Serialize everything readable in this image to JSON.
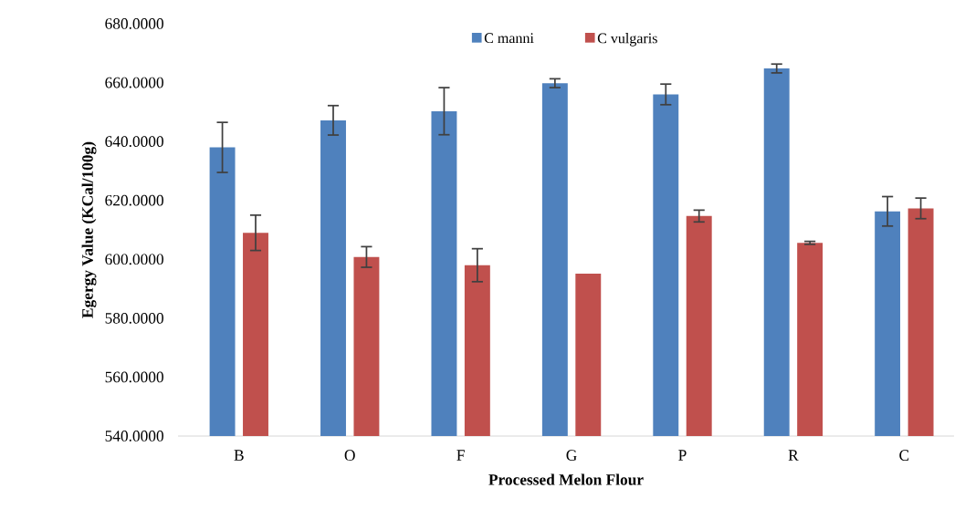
{
  "chart_data": {
    "type": "bar",
    "xlabel": "Processed Melon Flour",
    "ylabel": "Egergy Value (KCal/100g)",
    "categories": [
      "B",
      "O",
      "F",
      "G",
      "P",
      "R",
      "C"
    ],
    "series": [
      {
        "name": "C manni",
        "color": "#4f81bd",
        "values": [
          638,
          647.2,
          650.3,
          659.8,
          656,
          664.8,
          616.3
        ],
        "errors": [
          8.5,
          5,
          8,
          1.5,
          3.5,
          1.5,
          5
        ]
      },
      {
        "name": "C vulgaris",
        "color": "#c0504d",
        "values": [
          609,
          600.8,
          598,
          595.1,
          614.7,
          605.6,
          617.3
        ],
        "errors": [
          6,
          3.5,
          5.6,
          null,
          2,
          0.5,
          3.5
        ]
      }
    ],
    "ylim": [
      540,
      680
    ],
    "yticks": [
      {
        "value": 540,
        "label": "540.0000"
      },
      {
        "value": 560,
        "label": "560.0000"
      },
      {
        "value": 580,
        "label": "580.0000"
      },
      {
        "value": 600,
        "label": "600.0000"
      },
      {
        "value": 620,
        "label": "620.0000"
      },
      {
        "value": 640,
        "label": "640.0000"
      },
      {
        "value": 660,
        "label": "660.0000"
      },
      {
        "value": 680,
        "label": "680.0000"
      }
    ],
    "grid": false,
    "legend": "top"
  }
}
